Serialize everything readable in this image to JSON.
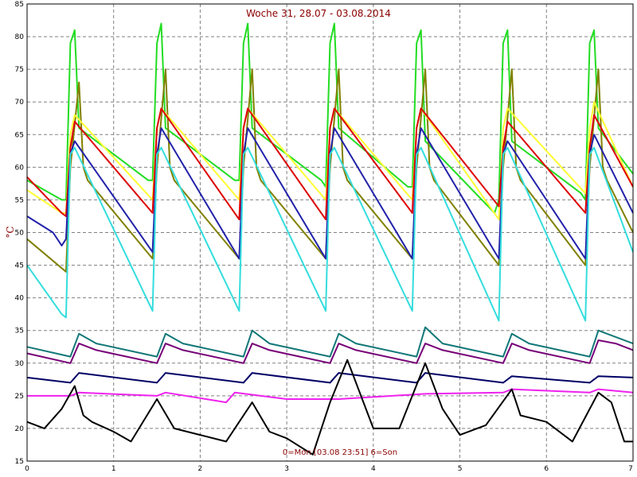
{
  "chart_data": {
    "type": "line",
    "title": "Woche 31, 28.07 - 03.08.2014",
    "ylabel": "°C",
    "xlabel": "",
    "status_text": "0=Mon [03.08 23:51] 6=Son",
    "xlim": [
      0,
      7
    ],
    "ylim": [
      15,
      85
    ],
    "x_ticks": [
      "0",
      "1",
      "2",
      "3",
      "4",
      "5",
      "6",
      "7"
    ],
    "y_ticks": [
      "15",
      "20",
      "25",
      "30",
      "35",
      "40",
      "45",
      "50",
      "55",
      "60",
      "65",
      "70",
      "75",
      "80",
      "85"
    ],
    "grid": true,
    "series": [
      {
        "color": "#22dd22",
        "x": [
          0,
          0.4,
          0.45,
          0.5,
          0.55,
          0.6,
          1.4,
          1.45,
          1.5,
          1.55,
          1.6,
          2.4,
          2.45,
          2.5,
          2.55,
          2.6,
          3.4,
          3.45,
          3.5,
          3.55,
          3.6,
          4.4,
          4.45,
          4.5,
          4.55,
          4.6,
          5.4,
          5.45,
          5.5,
          5.55,
          5.6,
          6.4,
          6.45,
          6.5,
          6.55,
          6.6,
          7
        ],
        "y": [
          58,
          55,
          55,
          79,
          81,
          66,
          58,
          58,
          79,
          82,
          66,
          58,
          58,
          79,
          82,
          66,
          58,
          57,
          79,
          82,
          66,
          57,
          57,
          79,
          81,
          64,
          53,
          55,
          79,
          81,
          64,
          56,
          55,
          79,
          81,
          66,
          59
        ]
      },
      {
        "color": "#808000",
        "x": [
          0,
          0.45,
          0.5,
          0.6,
          0.65,
          0.7,
          1.45,
          1.5,
          1.6,
          1.65,
          1.7,
          2.45,
          2.5,
          2.6,
          2.65,
          2.7,
          3.45,
          3.5,
          3.6,
          3.65,
          3.7,
          4.45,
          4.5,
          4.6,
          4.65,
          4.7,
          5.45,
          5.5,
          5.6,
          5.65,
          5.7,
          6.45,
          6.5,
          6.6,
          6.65,
          6.7,
          7
        ],
        "y": [
          49,
          44,
          60,
          73,
          60,
          58,
          46,
          60,
          75,
          60,
          58,
          46,
          60,
          75,
          60,
          58,
          46,
          60,
          75,
          60,
          58,
          46,
          60,
          75,
          60,
          58,
          45,
          60,
          75,
          60,
          58,
          45,
          60,
          75,
          60,
          58,
          50
        ]
      },
      {
        "color": "#ffff33",
        "x": [
          0,
          0.4,
          0.45,
          0.5,
          0.55,
          1.45,
          1.5,
          1.55,
          2.45,
          2.5,
          2.55,
          3.45,
          3.5,
          3.55,
          4.45,
          4.5,
          4.55,
          5.45,
          5.5,
          5.55,
          6.45,
          6.5,
          6.55,
          7
        ],
        "y": [
          56.5,
          53,
          53,
          65,
          68,
          55,
          66,
          69,
          55,
          66,
          69,
          55,
          66,
          69,
          55,
          66,
          69,
          52,
          66,
          69,
          56,
          66,
          70,
          57
        ]
      },
      {
        "color": "#dd0000",
        "x": [
          0,
          0.4,
          0.45,
          0.5,
          0.55,
          1.45,
          1.5,
          1.55,
          2.45,
          2.5,
          2.55,
          3.45,
          3.5,
          3.55,
          4.45,
          4.5,
          4.55,
          5.45,
          5.5,
          5.55,
          6.45,
          6.5,
          6.55,
          7
        ],
        "y": [
          58.5,
          53,
          52.5,
          63,
          67,
          53,
          66,
          69,
          52,
          66,
          69,
          52,
          66,
          69,
          53,
          66,
          69,
          54,
          63,
          67,
          53,
          63,
          68,
          57
        ]
      },
      {
        "color": "#2222aa",
        "x": [
          0,
          0.3,
          0.4,
          0.45,
          0.5,
          0.55,
          1.45,
          1.5,
          1.55,
          2.45,
          2.5,
          2.55,
          3.45,
          3.5,
          3.55,
          4.45,
          4.5,
          4.55,
          5.45,
          5.5,
          5.55,
          6.45,
          6.5,
          6.55,
          7
        ],
        "y": [
          52.5,
          50,
          48,
          49,
          62,
          64,
          47,
          62,
          66,
          46,
          62,
          66,
          46,
          62,
          66,
          46,
          62,
          66,
          46,
          62,
          64,
          46,
          62,
          65,
          53
        ]
      },
      {
        "color": "#33dddd",
        "x": [
          0,
          0.4,
          0.45,
          0.5,
          0.55,
          1.45,
          1.5,
          1.55,
          2.45,
          2.5,
          2.55,
          3.45,
          3.5,
          3.55,
          4.45,
          4.5,
          4.55,
          5.45,
          5.5,
          5.55,
          6.45,
          6.5,
          6.55,
          7
        ],
        "y": [
          45,
          37.5,
          37,
          62,
          63,
          38,
          62,
          63,
          38,
          62,
          63,
          38,
          62,
          63,
          38,
          62,
          63,
          36.5,
          62,
          63,
          36.5,
          62,
          63,
          47
        ]
      },
      {
        "color": "#117777",
        "x": [
          0,
          0.5,
          0.6,
          0.8,
          1.5,
          1.6,
          1.8,
          2.5,
          2.6,
          2.8,
          3.5,
          3.6,
          3.8,
          4.5,
          4.6,
          4.8,
          5.5,
          5.6,
          5.8,
          6.5,
          6.6,
          6.8,
          7
        ],
        "y": [
          32.5,
          31,
          34.5,
          33,
          31,
          34.5,
          33,
          31,
          35,
          33,
          31,
          34.5,
          33,
          31,
          35.5,
          33,
          31,
          34.5,
          33,
          31,
          35,
          34,
          33
        ]
      },
      {
        "color": "#770077",
        "x": [
          0,
          0.5,
          0.6,
          0.8,
          1.5,
          1.6,
          1.8,
          2.5,
          2.6,
          2.8,
          3.5,
          3.6,
          3.8,
          4.5,
          4.6,
          4.8,
          5.5,
          5.6,
          5.8,
          6.5,
          6.6,
          6.8,
          7
        ],
        "y": [
          31.5,
          30,
          33,
          32,
          30,
          33,
          32,
          30,
          33,
          32,
          30,
          33,
          32,
          30,
          33,
          32,
          30,
          33,
          32,
          30,
          33.5,
          33,
          32
        ]
      },
      {
        "color": "#000066",
        "x": [
          0,
          0.5,
          0.6,
          1.5,
          1.6,
          2.5,
          2.6,
          3.5,
          3.6,
          4.5,
          4.6,
          5.5,
          5.6,
          6.5,
          6.6,
          7
        ],
        "y": [
          27.8,
          27,
          28.5,
          27,
          28.5,
          27,
          28.5,
          27,
          28.5,
          27,
          28.5,
          27,
          28,
          27,
          28,
          27.8
        ]
      },
      {
        "color": "#ee22ee",
        "x": [
          0,
          0.5,
          0.6,
          1.5,
          1.6,
          2.3,
          2.4,
          3.0,
          3.6,
          4.6,
          5.5,
          5.6,
          6.5,
          6.6,
          7
        ],
        "y": [
          25,
          25,
          25.5,
          25,
          25.5,
          24,
          25.5,
          24.5,
          24.5,
          25.3,
          25.5,
          26,
          25.5,
          26,
          25.5
        ]
      },
      {
        "color": "#000000",
        "x": [
          0,
          0.2,
          0.4,
          0.55,
          0.65,
          0.75,
          1.0,
          1.2,
          1.5,
          1.7,
          2.0,
          2.3,
          2.6,
          2.8,
          3.0,
          3.3,
          3.5,
          3.7,
          4.0,
          4.3,
          4.6,
          4.8,
          5.0,
          5.3,
          5.6,
          5.7,
          6.0,
          6.3,
          6.6,
          6.75,
          6.9,
          7
        ],
        "y": [
          21,
          20,
          23,
          26.5,
          22,
          21,
          19.5,
          18,
          24.5,
          20,
          19,
          18,
          24,
          19.5,
          18.5,
          16,
          24,
          30.5,
          20,
          20,
          30,
          23,
          19,
          20.5,
          26,
          22,
          21,
          18,
          25.5,
          24,
          18,
          18
        ]
      }
    ]
  }
}
